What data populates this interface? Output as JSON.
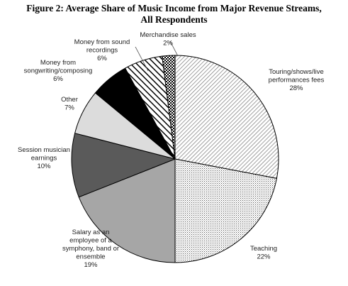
{
  "chart_data": {
    "type": "pie",
    "title_line1": "Figure 2: Average Share of Music Income from Major Revenue Streams,",
    "title_line2": "All Respondents",
    "slices": [
      {
        "label_lines": [
          "Touring/shows/live",
          "performances fees"
        ],
        "pct_label": "28%",
        "value": 28
      },
      {
        "label_lines": [
          "Teaching"
        ],
        "pct_label": "22%",
        "value": 22
      },
      {
        "label_lines": [
          "Salary as an",
          "employee of a",
          "symphony, band or",
          "ensemble"
        ],
        "pct_label": "19%",
        "value": 19
      },
      {
        "label_lines": [
          "Session musician",
          "earnings"
        ],
        "pct_label": "10%",
        "value": 10
      },
      {
        "label_lines": [
          "Other"
        ],
        "pct_label": "7%",
        "value": 7
      },
      {
        "label_lines": [
          "Money from",
          "songwriting/composing"
        ],
        "pct_label": "6%",
        "value": 6
      },
      {
        "label_lines": [
          "Money from sound",
          "recordings"
        ],
        "pct_label": "6%",
        "value": 6
      },
      {
        "label_lines": [
          "Merchandise sales"
        ],
        "pct_label": "2%",
        "value": 2
      }
    ]
  }
}
